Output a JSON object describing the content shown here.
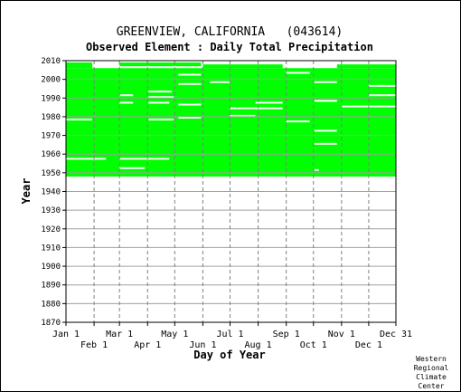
{
  "chart_data": {
    "type": "heatmap",
    "title": "GREENVIEW, CALIFORNIA   (043614)",
    "subtitle": "Observed Element : Daily Total Precipitation",
    "xlabel": "Day of Year",
    "ylabel": "Year",
    "ylim": [
      1870,
      2010
    ],
    "y_ticks": [
      1870,
      1880,
      1890,
      1900,
      1910,
      1920,
      1930,
      1940,
      1950,
      1960,
      1970,
      1980,
      1990,
      2000,
      2010
    ],
    "x_ticks_upper": [
      {
        "day": 1,
        "label": "Jan 1"
      },
      {
        "day": 60,
        "label": "Mar 1"
      },
      {
        "day": 121,
        "label": "May 1"
      },
      {
        "day": 182,
        "label": "Jul 1"
      },
      {
        "day": 244,
        "label": "Sep 1"
      },
      {
        "day": 305,
        "label": "Nov 1"
      },
      {
        "day": 365,
        "label": "Dec 31"
      }
    ],
    "x_ticks_lower": [
      {
        "day": 32,
        "label": "Feb 1"
      },
      {
        "day": 91,
        "label": "Apr 1"
      },
      {
        "day": 152,
        "label": "Jun 1"
      },
      {
        "day": 213,
        "label": "Aug 1"
      },
      {
        "day": 274,
        "label": "Oct 1"
      },
      {
        "day": 335,
        "label": "Dec 1"
      }
    ],
    "xlim": [
      1,
      365
    ],
    "grid": true,
    "data_color": "#00ff00",
    "observed_years": [
      {
        "start_day": 1,
        "end_day": 365,
        "start_year": 1948,
        "end_year": 2005
      },
      {
        "start_day": 1,
        "end_day": 30,
        "start_year": 2006,
        "end_year": 2008
      },
      {
        "start_day": 60,
        "end_day": 150,
        "start_year": 2007,
        "end_year": 2008
      },
      {
        "start_day": 152,
        "end_day": 240,
        "start_year": 2006,
        "end_year": 2007
      },
      {
        "start_day": 300,
        "end_day": 365,
        "start_year": 2006,
        "end_year": 2007
      }
    ],
    "missing_segments": [
      {
        "start_day": 1,
        "end_day": 30,
        "year": 1978
      },
      {
        "start_day": 1,
        "end_day": 45,
        "year": 1957
      },
      {
        "start_day": 60,
        "end_day": 75,
        "year": 1987
      },
      {
        "start_day": 60,
        "end_day": 75,
        "year": 1991
      },
      {
        "start_day": 60,
        "end_day": 115,
        "year": 1957
      },
      {
        "start_day": 60,
        "end_day": 88,
        "year": 1952
      },
      {
        "start_day": 92,
        "end_day": 120,
        "year": 1990
      },
      {
        "start_day": 92,
        "end_day": 115,
        "year": 1987
      },
      {
        "start_day": 92,
        "end_day": 120,
        "year": 1978
      },
      {
        "start_day": 92,
        "end_day": 118,
        "year": 1993
      },
      {
        "start_day": 125,
        "end_day": 150,
        "year": 2002
      },
      {
        "start_day": 125,
        "end_day": 150,
        "year": 1997
      },
      {
        "start_day": 125,
        "end_day": 150,
        "year": 1986
      },
      {
        "start_day": 125,
        "end_day": 150,
        "year": 1979
      },
      {
        "start_day": 160,
        "end_day": 182,
        "year": 1998
      },
      {
        "start_day": 182,
        "end_day": 210,
        "year": 1980
      },
      {
        "start_day": 182,
        "end_day": 240,
        "year": 1984
      },
      {
        "start_day": 210,
        "end_day": 240,
        "year": 1987
      },
      {
        "start_day": 244,
        "end_day": 270,
        "year": 2003
      },
      {
        "start_day": 244,
        "end_day": 270,
        "year": 1977
      },
      {
        "start_day": 275,
        "end_day": 300,
        "year": 1998
      },
      {
        "start_day": 275,
        "end_day": 300,
        "year": 1988
      },
      {
        "start_day": 275,
        "end_day": 300,
        "year": 1972
      },
      {
        "start_day": 275,
        "end_day": 300,
        "year": 1965
      },
      {
        "start_day": 275,
        "end_day": 280,
        "year": 1951
      },
      {
        "start_day": 305,
        "end_day": 365,
        "year": 1985
      },
      {
        "start_day": 335,
        "end_day": 365,
        "year": 1991
      },
      {
        "start_day": 335,
        "end_day": 365,
        "year": 1996
      }
    ]
  },
  "credit": [
    "Western",
    "Regional",
    "Climate",
    "Center"
  ]
}
